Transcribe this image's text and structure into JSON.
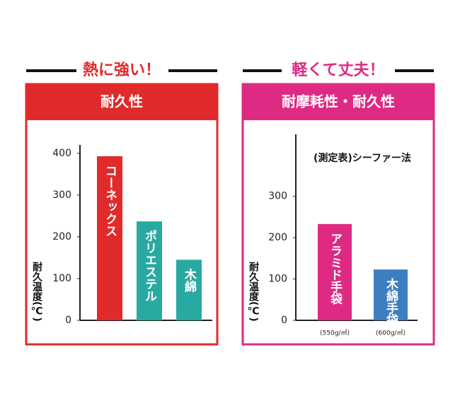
{
  "chart_data": [
    {
      "type": "bar",
      "heading": "熱に強い！",
      "title": "耐久性",
      "ylabel": "耐久温度(℃)",
      "categories": [
        "コーネックス",
        "ポリエステル",
        "木綿"
      ],
      "values": [
        393,
        237,
        145
      ],
      "colors": [
        "#e12a2b",
        "#2aa9a2",
        "#2aa9a2"
      ],
      "frame_color": "#e12a2b",
      "ylim": [
        0,
        420
      ],
      "yticks": [
        0,
        100,
        200,
        300,
        400
      ]
    },
    {
      "type": "bar",
      "heading": "軽くて丈夫！",
      "title": "耐摩耗性・耐久性",
      "subtitle": "(測定表)シーファー法",
      "ylabel": "耐久温度(℃)",
      "categories": [
        "アラミド手袋",
        "木綿手袋"
      ],
      "values": [
        233,
        123
      ],
      "sublabels": [
        "(550g/㎡)",
        "(600g/㎡)"
      ],
      "colors": [
        "#de2a83",
        "#3c7ec1"
      ],
      "frame_color": "#de2a83",
      "ylim": [
        0,
        450
      ],
      "yticks": [
        0,
        100,
        200,
        300
      ]
    }
  ]
}
